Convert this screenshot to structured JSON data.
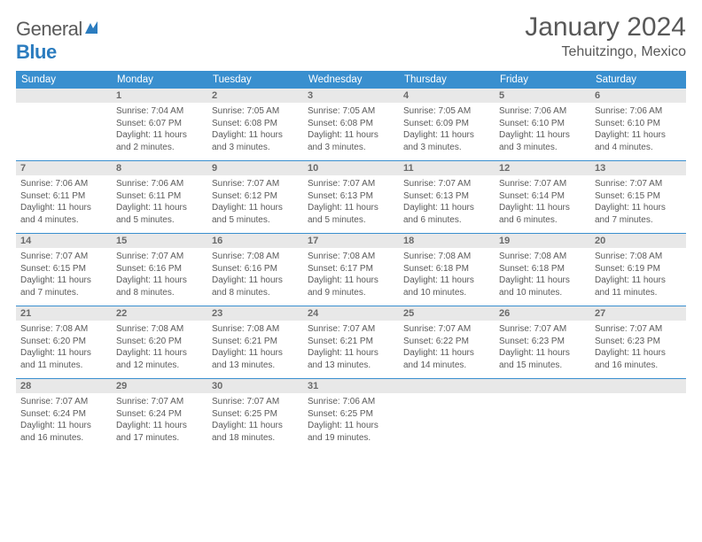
{
  "brand": {
    "part1": "General",
    "part2": "Blue"
  },
  "title": "January 2024",
  "location": "Tehuitzingo, Mexico",
  "colors": {
    "accent": "#398fcf",
    "header_text": "#ffffff",
    "daynum_bg": "#e8e8e8",
    "text": "#5a5a5a"
  },
  "dow": [
    "Sunday",
    "Monday",
    "Tuesday",
    "Wednesday",
    "Thursday",
    "Friday",
    "Saturday"
  ],
  "weeks": [
    {
      "nums": [
        "",
        "1",
        "2",
        "3",
        "4",
        "5",
        "6"
      ],
      "cells": [
        {
          "sr": "",
          "ss": "",
          "dl1": "",
          "dl2": ""
        },
        {
          "sr": "Sunrise: 7:04 AM",
          "ss": "Sunset: 6:07 PM",
          "dl1": "Daylight: 11 hours",
          "dl2": "and 2 minutes."
        },
        {
          "sr": "Sunrise: 7:05 AM",
          "ss": "Sunset: 6:08 PM",
          "dl1": "Daylight: 11 hours",
          "dl2": "and 3 minutes."
        },
        {
          "sr": "Sunrise: 7:05 AM",
          "ss": "Sunset: 6:08 PM",
          "dl1": "Daylight: 11 hours",
          "dl2": "and 3 minutes."
        },
        {
          "sr": "Sunrise: 7:05 AM",
          "ss": "Sunset: 6:09 PM",
          "dl1": "Daylight: 11 hours",
          "dl2": "and 3 minutes."
        },
        {
          "sr": "Sunrise: 7:06 AM",
          "ss": "Sunset: 6:10 PM",
          "dl1": "Daylight: 11 hours",
          "dl2": "and 3 minutes."
        },
        {
          "sr": "Sunrise: 7:06 AM",
          "ss": "Sunset: 6:10 PM",
          "dl1": "Daylight: 11 hours",
          "dl2": "and 4 minutes."
        }
      ]
    },
    {
      "nums": [
        "7",
        "8",
        "9",
        "10",
        "11",
        "12",
        "13"
      ],
      "cells": [
        {
          "sr": "Sunrise: 7:06 AM",
          "ss": "Sunset: 6:11 PM",
          "dl1": "Daylight: 11 hours",
          "dl2": "and 4 minutes."
        },
        {
          "sr": "Sunrise: 7:06 AM",
          "ss": "Sunset: 6:11 PM",
          "dl1": "Daylight: 11 hours",
          "dl2": "and 5 minutes."
        },
        {
          "sr": "Sunrise: 7:07 AM",
          "ss": "Sunset: 6:12 PM",
          "dl1": "Daylight: 11 hours",
          "dl2": "and 5 minutes."
        },
        {
          "sr": "Sunrise: 7:07 AM",
          "ss": "Sunset: 6:13 PM",
          "dl1": "Daylight: 11 hours",
          "dl2": "and 5 minutes."
        },
        {
          "sr": "Sunrise: 7:07 AM",
          "ss": "Sunset: 6:13 PM",
          "dl1": "Daylight: 11 hours",
          "dl2": "and 6 minutes."
        },
        {
          "sr": "Sunrise: 7:07 AM",
          "ss": "Sunset: 6:14 PM",
          "dl1": "Daylight: 11 hours",
          "dl2": "and 6 minutes."
        },
        {
          "sr": "Sunrise: 7:07 AM",
          "ss": "Sunset: 6:15 PM",
          "dl1": "Daylight: 11 hours",
          "dl2": "and 7 minutes."
        }
      ]
    },
    {
      "nums": [
        "14",
        "15",
        "16",
        "17",
        "18",
        "19",
        "20"
      ],
      "cells": [
        {
          "sr": "Sunrise: 7:07 AM",
          "ss": "Sunset: 6:15 PM",
          "dl1": "Daylight: 11 hours",
          "dl2": "and 7 minutes."
        },
        {
          "sr": "Sunrise: 7:07 AM",
          "ss": "Sunset: 6:16 PM",
          "dl1": "Daylight: 11 hours",
          "dl2": "and 8 minutes."
        },
        {
          "sr": "Sunrise: 7:08 AM",
          "ss": "Sunset: 6:16 PM",
          "dl1": "Daylight: 11 hours",
          "dl2": "and 8 minutes."
        },
        {
          "sr": "Sunrise: 7:08 AM",
          "ss": "Sunset: 6:17 PM",
          "dl1": "Daylight: 11 hours",
          "dl2": "and 9 minutes."
        },
        {
          "sr": "Sunrise: 7:08 AM",
          "ss": "Sunset: 6:18 PM",
          "dl1": "Daylight: 11 hours",
          "dl2": "and 10 minutes."
        },
        {
          "sr": "Sunrise: 7:08 AM",
          "ss": "Sunset: 6:18 PM",
          "dl1": "Daylight: 11 hours",
          "dl2": "and 10 minutes."
        },
        {
          "sr": "Sunrise: 7:08 AM",
          "ss": "Sunset: 6:19 PM",
          "dl1": "Daylight: 11 hours",
          "dl2": "and 11 minutes."
        }
      ]
    },
    {
      "nums": [
        "21",
        "22",
        "23",
        "24",
        "25",
        "26",
        "27"
      ],
      "cells": [
        {
          "sr": "Sunrise: 7:08 AM",
          "ss": "Sunset: 6:20 PM",
          "dl1": "Daylight: 11 hours",
          "dl2": "and 11 minutes."
        },
        {
          "sr": "Sunrise: 7:08 AM",
          "ss": "Sunset: 6:20 PM",
          "dl1": "Daylight: 11 hours",
          "dl2": "and 12 minutes."
        },
        {
          "sr": "Sunrise: 7:08 AM",
          "ss": "Sunset: 6:21 PM",
          "dl1": "Daylight: 11 hours",
          "dl2": "and 13 minutes."
        },
        {
          "sr": "Sunrise: 7:07 AM",
          "ss": "Sunset: 6:21 PM",
          "dl1": "Daylight: 11 hours",
          "dl2": "and 13 minutes."
        },
        {
          "sr": "Sunrise: 7:07 AM",
          "ss": "Sunset: 6:22 PM",
          "dl1": "Daylight: 11 hours",
          "dl2": "and 14 minutes."
        },
        {
          "sr": "Sunrise: 7:07 AM",
          "ss": "Sunset: 6:23 PM",
          "dl1": "Daylight: 11 hours",
          "dl2": "and 15 minutes."
        },
        {
          "sr": "Sunrise: 7:07 AM",
          "ss": "Sunset: 6:23 PM",
          "dl1": "Daylight: 11 hours",
          "dl2": "and 16 minutes."
        }
      ]
    },
    {
      "nums": [
        "28",
        "29",
        "30",
        "31",
        "",
        "",
        ""
      ],
      "cells": [
        {
          "sr": "Sunrise: 7:07 AM",
          "ss": "Sunset: 6:24 PM",
          "dl1": "Daylight: 11 hours",
          "dl2": "and 16 minutes."
        },
        {
          "sr": "Sunrise: 7:07 AM",
          "ss": "Sunset: 6:24 PM",
          "dl1": "Daylight: 11 hours",
          "dl2": "and 17 minutes."
        },
        {
          "sr": "Sunrise: 7:07 AM",
          "ss": "Sunset: 6:25 PM",
          "dl1": "Daylight: 11 hours",
          "dl2": "and 18 minutes."
        },
        {
          "sr": "Sunrise: 7:06 AM",
          "ss": "Sunset: 6:25 PM",
          "dl1": "Daylight: 11 hours",
          "dl2": "and 19 minutes."
        },
        {
          "sr": "",
          "ss": "",
          "dl1": "",
          "dl2": ""
        },
        {
          "sr": "",
          "ss": "",
          "dl1": "",
          "dl2": ""
        },
        {
          "sr": "",
          "ss": "",
          "dl1": "",
          "dl2": ""
        }
      ]
    }
  ]
}
